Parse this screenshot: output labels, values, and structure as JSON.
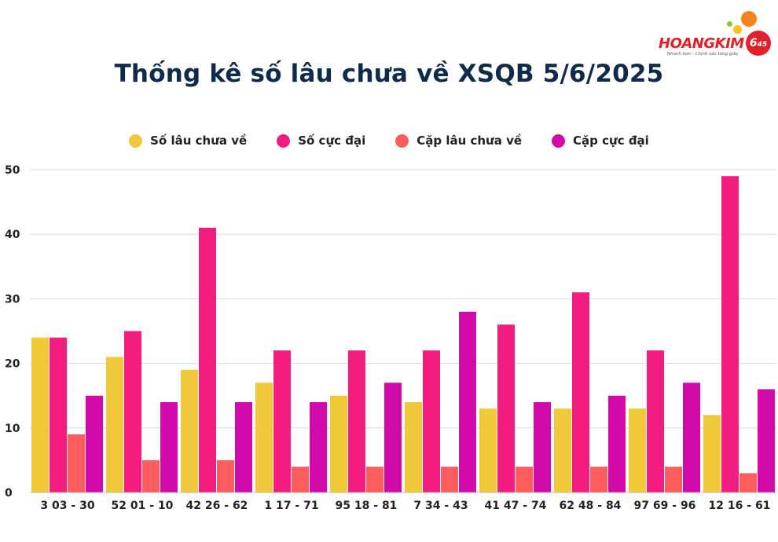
{
  "page": {
    "title": "Thống kê số lâu chưa về XSQB 5/6/2025"
  },
  "logo": {
    "name": "HOANGKIM",
    "badge": "6",
    "badge_suffix": "45",
    "tagline": "Nhanh hơn - Chính xác từng giây",
    "colors": {
      "red": "#e0202a",
      "orange": "#f58220",
      "yellow": "#f7c21b",
      "green": "#8cc63f"
    }
  },
  "chart_data": {
    "type": "bar",
    "title": "Thống kê số lâu chưa về XSQB 5/6/2025",
    "xlabel": "",
    "ylabel": "",
    "ylim": [
      0,
      50
    ],
    "yticks": [
      0,
      10,
      20,
      30,
      40,
      50
    ],
    "grid": true,
    "legend_position": "top-center",
    "categories": [
      "3 03 - 30",
      "52 01 - 10",
      "42 26 - 62",
      "1 17 - 71",
      "95 18 - 81",
      "7 34 - 43",
      "41 47 - 74",
      "62 48 - 84",
      "97 69 - 96",
      "12 16 - 61"
    ],
    "series": [
      {
        "name": "Số lâu chưa về",
        "color": "#f0c93a",
        "values": [
          24,
          21,
          19,
          17,
          15,
          14,
          13,
          13,
          13,
          12
        ]
      },
      {
        "name": "Số cực đại",
        "color": "#f21d7e",
        "values": [
          24,
          25,
          41,
          22,
          22,
          22,
          26,
          31,
          22,
          49
        ]
      },
      {
        "name": "Cặp lâu chưa về",
        "color": "#ff5d5d",
        "values": [
          9,
          5,
          5,
          4,
          4,
          4,
          4,
          4,
          4,
          3
        ]
      },
      {
        "name": "Cặp cực đại",
        "color": "#d10aa9",
        "values": [
          15,
          14,
          14,
          14,
          17,
          28,
          14,
          15,
          17,
          16
        ]
      }
    ]
  }
}
